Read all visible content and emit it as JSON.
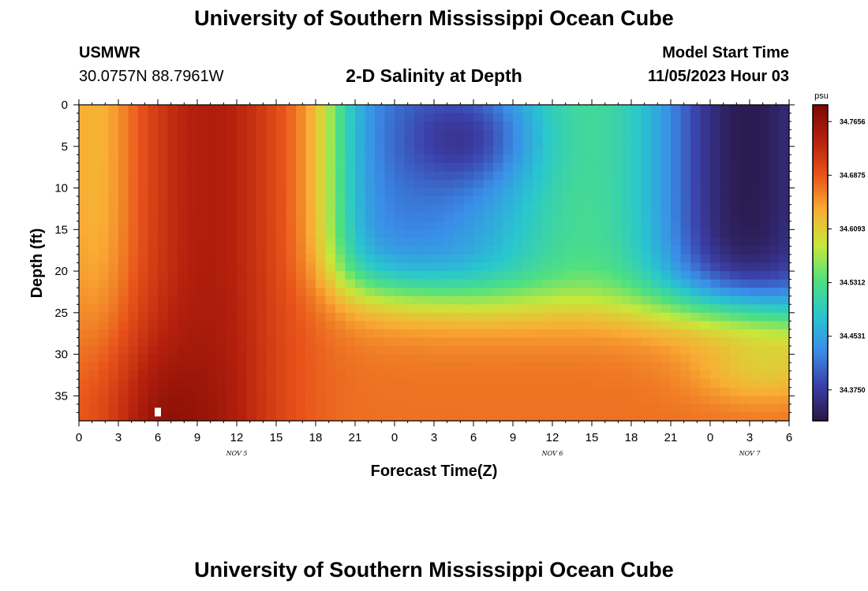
{
  "header": {
    "title": "University of Southern Mississippi Ocean Cube",
    "station": "USMWR",
    "coords": "30.0757N  88.7961W",
    "subtitle": "2-D Salinity at Depth",
    "model_start_label": "Model Start Time",
    "model_start_value": "11/05/2023 Hour 03",
    "footer_title": "University of Southern Mississippi Ocean Cube"
  },
  "colors": {
    "palette": [
      "#2a1747",
      "#3b3fa8",
      "#3a8ee8",
      "#28c6cf",
      "#4fe080",
      "#c8e83a",
      "#f9ad34",
      "#e8531a",
      "#b5200d",
      "#7a0a04"
    ],
    "marker": "#ffffff"
  },
  "chart_data": {
    "type": "heatmap",
    "xlabel": "Forecast Time(Z)",
    "ylabel": "Depth (ft)",
    "colorbar_unit": "psu",
    "x_ticks": [
      "0",
      "3",
      "6",
      "9",
      "12",
      "15",
      "18",
      "21",
      "0",
      "3",
      "6",
      "9",
      "12",
      "15",
      "18",
      "21",
      "0",
      "3",
      "6"
    ],
    "y_ticks": [
      "0",
      "5",
      "10",
      "15",
      "20",
      "25",
      "30",
      "35"
    ],
    "xlim_hours": [
      0,
      54
    ],
    "ylim_ft": [
      0,
      38
    ],
    "day_labels": [
      {
        "label": "NOV 5",
        "hour": 12
      },
      {
        "label": "NOV 6",
        "hour": 36
      },
      {
        "label": "NOV 7",
        "hour": 51
      }
    ],
    "colorbar": {
      "range": [
        34.33,
        34.79
      ],
      "tick_values": [
        34.375,
        34.4531,
        34.5312,
        34.6093,
        34.6875,
        34.7656
      ],
      "tick_labels": [
        "34.3750",
        "34.4531",
        "34.5312",
        "34.6093",
        "34.6875",
        "34.7656"
      ]
    },
    "grid": false,
    "marker": {
      "hour": 6,
      "depth_ft": 37
    }
  }
}
